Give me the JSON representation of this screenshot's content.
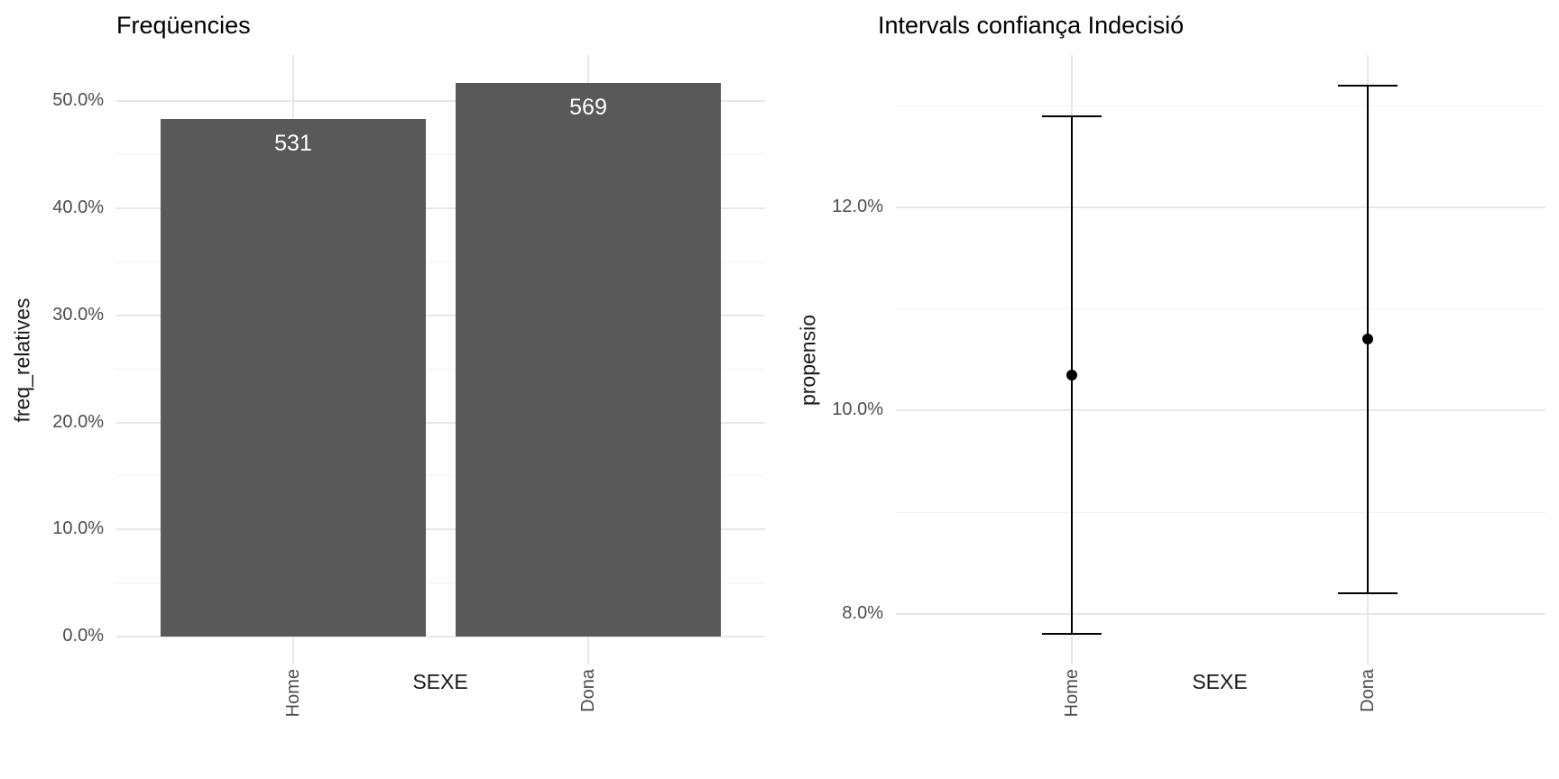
{
  "colors": {
    "background": "#ffffff",
    "bar_fill": "#595959",
    "bar_label_text": "#ffffff",
    "grid_major": "#e7e7e7",
    "grid_minor": "#f1f1f1",
    "tick_label": "#4d4d4d",
    "axis_title": "#1a1a1a",
    "title_text": "#000000",
    "errorbar": "#000000"
  },
  "chart_data": [
    {
      "type": "bar",
      "title": "Freqüencies",
      "xlabel": "SEXE",
      "ylabel": "freq_relatives",
      "categories": [
        "Home",
        "Dona"
      ],
      "counts": [
        531,
        569
      ],
      "bar_labels": [
        "531",
        "569"
      ],
      "values_percent": [
        48.3,
        51.7
      ],
      "y_ticks": [
        "0.0%",
        "10.0%",
        "20.0%",
        "30.0%",
        "40.0%",
        "50.0%"
      ],
      "y_tick_values": [
        0,
        10,
        20,
        30,
        40,
        50
      ],
      "y_minor_values": [
        5,
        15,
        25,
        35,
        45
      ],
      "ylim": [
        -2.6,
        54.3
      ],
      "grid": true,
      "legend": "none"
    },
    {
      "type": "errorbar",
      "title": "Intervals confiança Indecisió",
      "xlabel": "SEXE",
      "ylabel": "propensio",
      "categories": [
        "Home",
        "Dona"
      ],
      "series": [
        {
          "name": "estimate_percent",
          "values": [
            10.35,
            10.7
          ]
        },
        {
          "name": "ci_low_percent",
          "values": [
            7.8,
            8.2
          ]
        },
        {
          "name": "ci_high_percent",
          "values": [
            12.9,
            13.2
          ]
        }
      ],
      "y_ticks": [
        "8.0%",
        "10.0%",
        "12.0%"
      ],
      "y_tick_values": [
        8,
        10,
        12
      ],
      "y_minor_values": [
        9,
        11,
        13
      ],
      "ylim": [
        7.5,
        13.5
      ],
      "grid": true,
      "legend": "none"
    }
  ]
}
